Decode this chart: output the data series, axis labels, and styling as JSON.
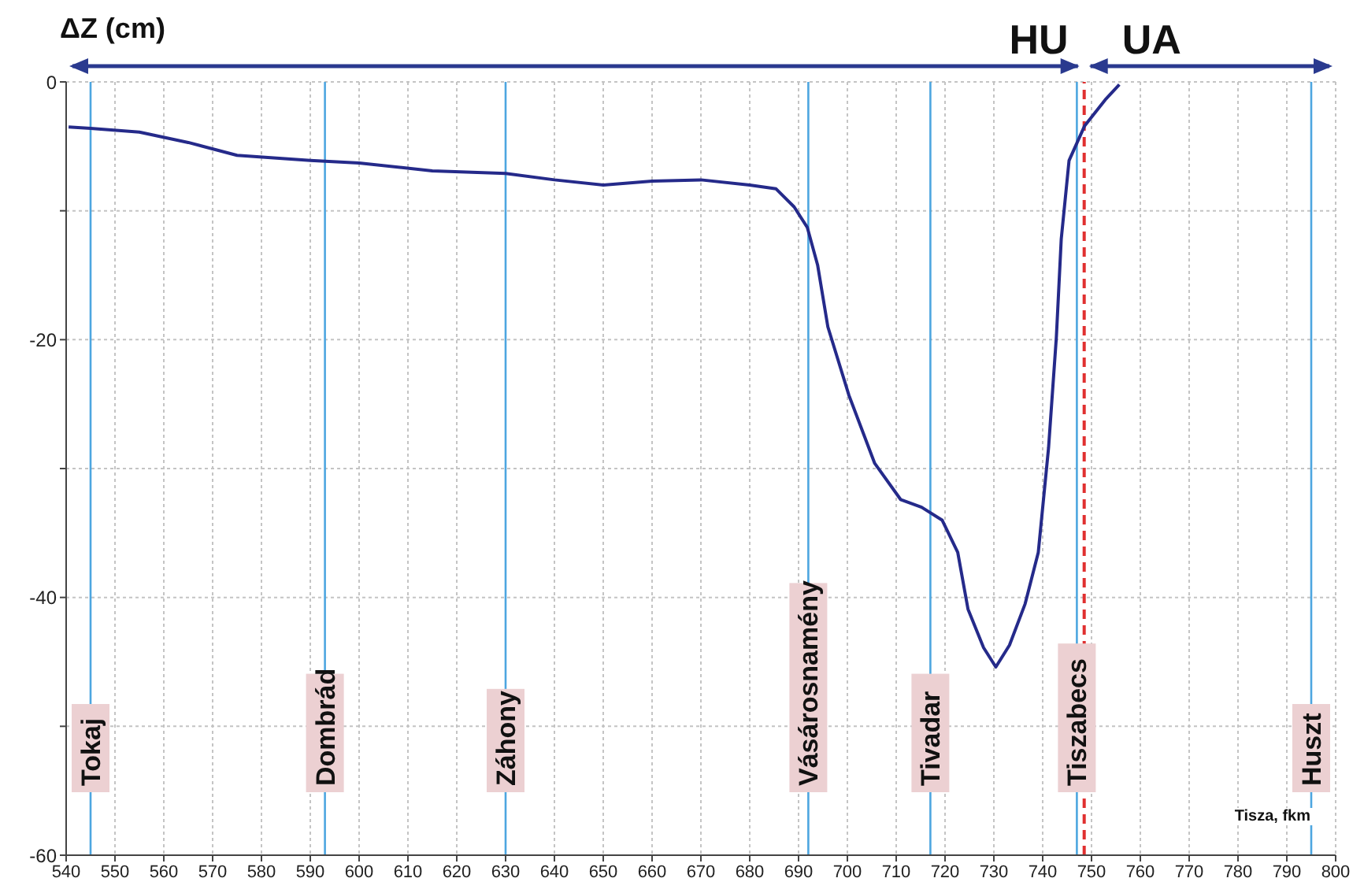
{
  "chart_data": {
    "type": "line",
    "xlabel": "Tisza, fkm",
    "ylabel": "ΔZ (cm)",
    "annotations": [
      "HU",
      "UA"
    ],
    "x": [
      540.5,
      545,
      555,
      565,
      575,
      590,
      600,
      615,
      630,
      640,
      650,
      660,
      670,
      680,
      685.4,
      689.1,
      691.8,
      693.9,
      696.0,
      700.3,
      705.6,
      710.9,
      715.2,
      719.4,
      722.6,
      724.7,
      727.9,
      730.4,
      733.2,
      736.4,
      739.1,
      741.2,
      742.8,
      743.8,
      745.4,
      748.6,
      753,
      755.7
    ],
    "series": [
      {
        "color": "#252a8a",
        "values": [
          -3.5,
          -3.6,
          -3.9,
          -4.7,
          -5.7,
          -6.1,
          -6.3,
          -6.9,
          -7.1,
          -7.6,
          -8.0,
          -7.7,
          -7.6,
          -8.0,
          -8.3,
          -9.7,
          -11.3,
          -14.2,
          -19.0,
          -24.3,
          -29.6,
          -32.4,
          -33.0,
          -34.0,
          -36.5,
          -40.9,
          -43.9,
          -45.4,
          -43.7,
          -40.5,
          -36.5,
          -28.4,
          -19.8,
          -12.2,
          -6.1,
          -3.4,
          -1.3,
          -0.2
        ]
      }
    ],
    "xlim": [
      540,
      800
    ],
    "xticks": [
      540,
      550,
      560,
      570,
      580,
      590,
      600,
      610,
      620,
      630,
      640,
      650,
      660,
      670,
      680,
      690,
      700,
      710,
      720,
      730,
      740,
      750,
      760,
      770,
      780,
      790,
      800
    ],
    "ylim": [
      -60,
      0
    ],
    "yticks": [
      -60,
      {
        "value": -50,
        "label": null
      },
      -40,
      {
        "value": -30,
        "label": null
      },
      -20,
      {
        "value": -10,
        "label": null
      },
      0
    ],
    "grid": true,
    "marker": "none",
    "line_style": "solid",
    "ref_lines": [
      {
        "axis": "x",
        "value": 545,
        "label": "Tokaj",
        "color": "#4da6e0"
      },
      {
        "axis": "x",
        "value": 593,
        "label": "Dombrád",
        "color": "#4da6e0"
      },
      {
        "axis": "x",
        "value": 630,
        "label": "Záhony",
        "color": "#4da6e0"
      },
      {
        "axis": "x",
        "value": 692,
        "label": "Vásárosnamény",
        "color": "#4da6e0"
      },
      {
        "axis": "x",
        "value": 717,
        "label": "Tivadar",
        "color": "#4da6e0"
      },
      {
        "axis": "x",
        "value": 747,
        "label": "Tiszabecs",
        "color": "#4da6e0"
      },
      {
        "axis": "x",
        "value": 795,
        "label": "Huszt",
        "color": "#4da6e0"
      },
      {
        "axis": "x",
        "value": 748.5,
        "color": "#e03030",
        "line_style": "dashed"
      }
    ]
  }
}
